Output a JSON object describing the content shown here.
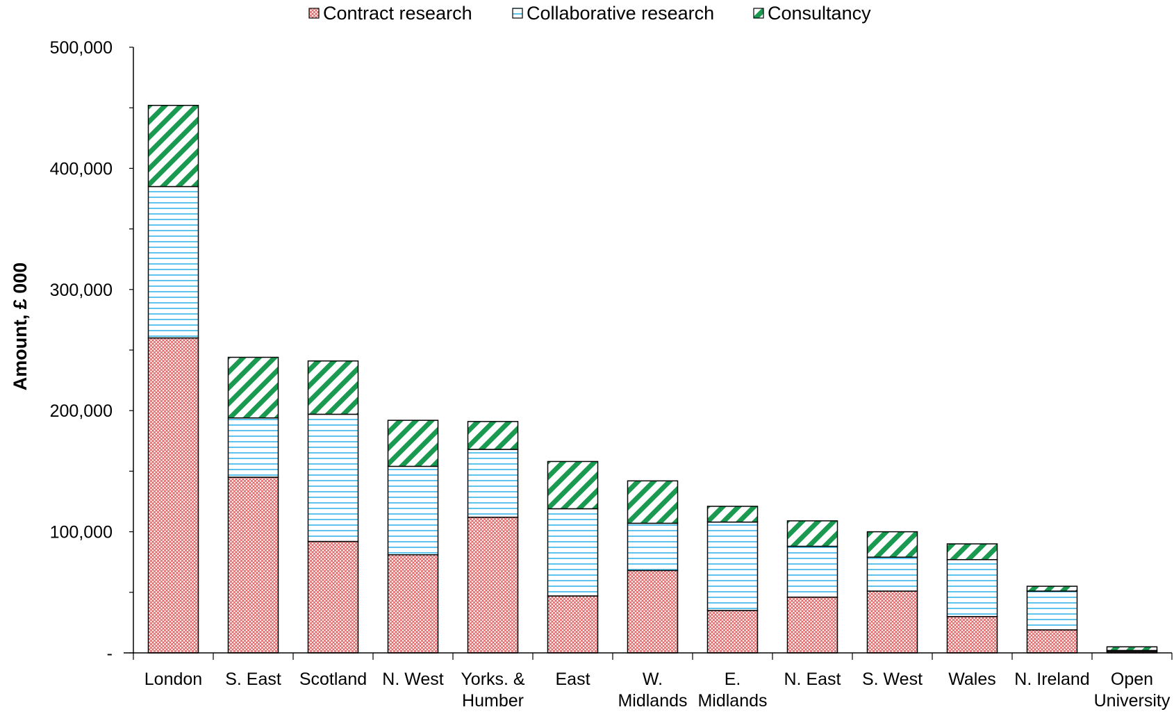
{
  "chart_data": {
    "type": "bar",
    "stacked": true,
    "ylabel": "Amount, £ 000",
    "ylim": [
      0,
      500000
    ],
    "yticks": [
      0,
      100000,
      200000,
      300000,
      400000,
      500000
    ],
    "ytick_labels": [
      "-",
      "100,000",
      "200,000",
      "300,000",
      "400,000",
      "500,000"
    ],
    "categories": [
      [
        "London"
      ],
      [
        "S. East"
      ],
      [
        "Scotland"
      ],
      [
        "N. West"
      ],
      [
        "Yorks. &",
        "Humber"
      ],
      [
        "East"
      ],
      [
        "W.",
        "Midlands"
      ],
      [
        "E.",
        "Midlands"
      ],
      [
        "N. East"
      ],
      [
        "S. West"
      ],
      [
        "Wales"
      ],
      [
        "N. Ireland"
      ],
      [
        "Open",
        "University"
      ]
    ],
    "series": [
      {
        "name": "Contract research",
        "color": "#e06666",
        "pattern": "crosshatch",
        "values": [
          260000,
          145000,
          92000,
          81000,
          112000,
          47000,
          68000,
          35000,
          46000,
          51000,
          30000,
          19000,
          1000
        ]
      },
      {
        "name": "Collaborative research",
        "color": "#33b5e5",
        "pattern": "horizontal-lines",
        "values": [
          125000,
          49000,
          105000,
          73000,
          56000,
          72000,
          39000,
          73000,
          42000,
          28000,
          47000,
          32000,
          1000
        ]
      },
      {
        "name": "Consultancy",
        "color": "#1a9a50",
        "pattern": "diagonal-stripes",
        "values": [
          67000,
          50000,
          44000,
          38000,
          23000,
          39000,
          35000,
          13000,
          21000,
          21000,
          13000,
          4000,
          3000
        ]
      }
    ],
    "legend_position": "top-center",
    "grid": false
  }
}
